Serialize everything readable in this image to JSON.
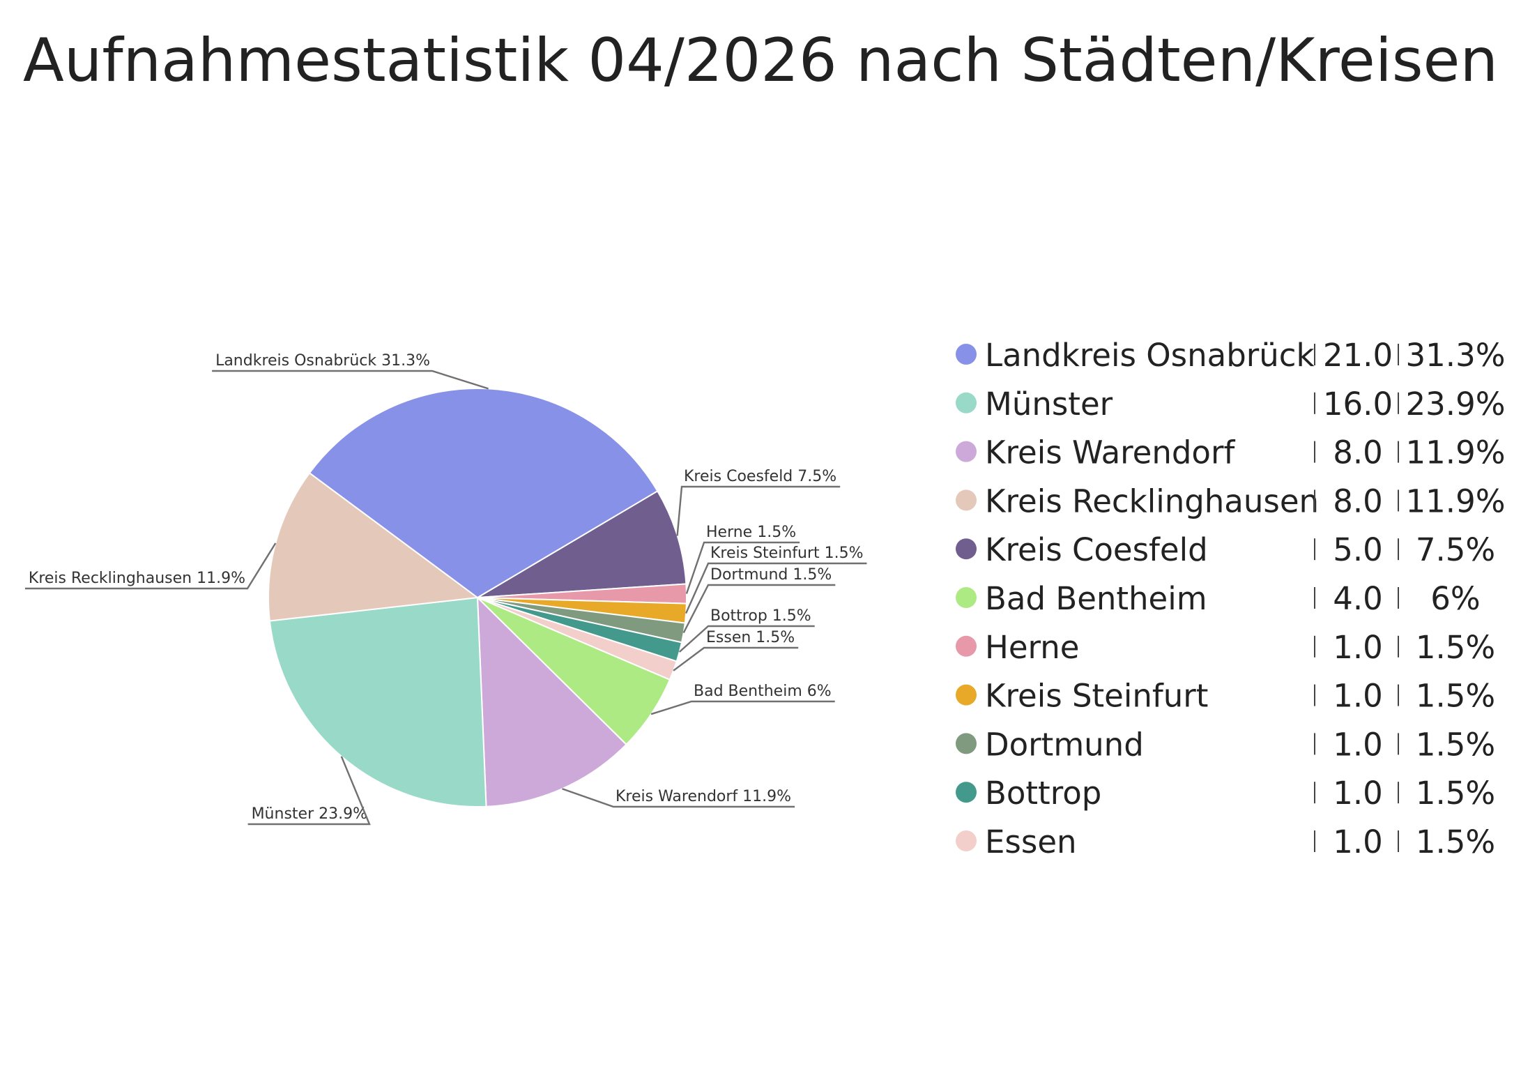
{
  "chart_data": {
    "type": "pie",
    "title": "Aufnahmestatistik 04/2026 nach Städten/Kreisen",
    "slices": [
      {
        "name": "Landkreis Osnabrück",
        "value": 21.0,
        "value_label": "21.0",
        "percent_label": "31.3%",
        "color": "#8891E8"
      },
      {
        "name": "Münster",
        "value": 16.0,
        "value_label": "16.0",
        "percent_label": "23.9%",
        "color": "#98D9C8"
      },
      {
        "name": "Kreis Warendorf",
        "value": 8.0,
        "value_label": "8.0",
        "percent_label": "11.9%",
        "color": "#CDA9DA"
      },
      {
        "name": "Kreis Recklinghausen",
        "value": 8.0,
        "value_label": "8.0",
        "percent_label": "11.9%",
        "color": "#E4C8BA"
      },
      {
        "name": "Kreis Coesfeld",
        "value": 5.0,
        "value_label": "5.0",
        "percent_label": "7.5%",
        "color": "#6F5E8E"
      },
      {
        "name": "Bad Bentheim",
        "value": 4.0,
        "value_label": "4.0",
        "percent_label": "6%",
        "color": "#AEEA83"
      },
      {
        "name": "Herne",
        "value": 1.0,
        "value_label": "1.0",
        "percent_label": "1.5%",
        "color": "#E798A9"
      },
      {
        "name": "Kreis Steinfurt",
        "value": 1.0,
        "value_label": "1.0",
        "percent_label": "1.5%",
        "color": "#E7A927"
      },
      {
        "name": "Dortmund",
        "value": 1.0,
        "value_label": "1.0",
        "percent_label": "1.5%",
        "color": "#809A80"
      },
      {
        "name": "Bottrop",
        "value": 1.0,
        "value_label": "1.0",
        "percent_label": "1.5%",
        "color": "#439A8C"
      },
      {
        "name": "Essen",
        "value": 1.0,
        "value_label": "1.0",
        "percent_label": "1.5%",
        "color": "#F3CFCB"
      }
    ],
    "slice_order_clockwise_from_top": [
      "Kreis Coesfeld",
      "Herne",
      "Kreis Steinfurt",
      "Dortmund",
      "Bottrop",
      "Essen",
      "Bad Bentheim",
      "Kreis Warendorf",
      "Münster",
      "Kreis Recklinghausen",
      "Landkreis Osnabrück"
    ],
    "legend_position": "right"
  }
}
